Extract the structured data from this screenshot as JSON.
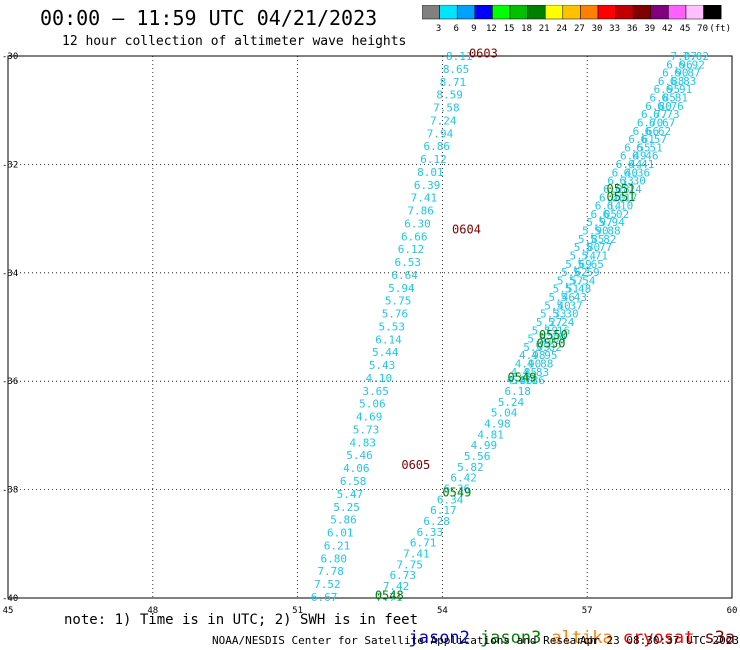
{
  "header": {
    "title": "00:00 – 11:59 UTC 04/21/2023",
    "subtitle": "12 hour collection of altimeter wave heights"
  },
  "colorbar": {
    "ticks": [
      "3",
      "6",
      "9",
      "12",
      "15",
      "18",
      "21",
      "24",
      "27",
      "30",
      "33",
      "36",
      "39",
      "42",
      "45",
      "70",
      "(ft)"
    ],
    "colors": [
      "#808080",
      "#00e5ff",
      "#00a0ff",
      "#0000ff",
      "#00ff00",
      "#00c000",
      "#008000",
      "#ffff00",
      "#ffc000",
      "#ff8000",
      "#ff0000",
      "#c00000",
      "#800000",
      "#800080",
      "#ff60ff",
      "#ffc0ff",
      "#000000"
    ]
  },
  "axes": {
    "x_ticks": [
      "45",
      "48",
      "51",
      "54",
      "57",
      "60"
    ],
    "y_ticks": [
      "-30",
      "-32",
      "-34",
      "-36",
      "-38",
      "-40"
    ],
    "lon_range": [
      45,
      60
    ],
    "lat_range": [
      -40,
      -30
    ]
  },
  "chart_data": {
    "type": "scatter",
    "tracks": [
      {
        "satellite": "altika-cyan-west",
        "color": "#1ec8e8",
        "lon_start": 54.35,
        "lat_start": -30.0,
        "lon_end": 51.55,
        "lat_end": -39.98,
        "values": [
          "8.11",
          "8.65",
          "8.71",
          "8.59",
          "7.58",
          "7.24",
          "7.94",
          "6.86",
          "6.12",
          "8.01",
          "6.39",
          "7.41",
          "7.86",
          "6.30",
          "6.66",
          "6.12",
          "6.53",
          "6.64",
          "5.94",
          "5.75",
          "5.76",
          "5.53",
          "6.14",
          "5.44",
          "5.43",
          "4.10",
          "3.65",
          "5.06",
          "4.69",
          "5.73",
          "4.83",
          "5.46",
          "4.06",
          "6.58",
          "5.47",
          "5.25",
          "5.86",
          "6.01",
          "6.21",
          "6.80",
          "7.78",
          "7.52",
          "6.67"
        ]
      },
      {
        "satellite": "altika-cyan-east",
        "color": "#1ec8e8",
        "lon_start": 55.7,
        "lat_start": -35.98,
        "lon_end": 52.9,
        "lat_end": -39.98,
        "values": [
          "5.71",
          "6.18",
          "5.24",
          "5.04",
          "4.98",
          "4.81",
          "4.99",
          "5.56",
          "5.82",
          "6.42",
          "6.36",
          "6.34",
          "6.17",
          "6.28",
          "6.33",
          "6.71",
          "7.41",
          "7.75",
          "6.73",
          "7.42",
          "7.71"
        ]
      },
      {
        "satellite": "jason3-dense-a",
        "color": "#1ec8e8",
        "lon_start": 59.0,
        "lat_start": -30.0,
        "lon_end": 55.6,
        "lat_end": -35.98,
        "values": [
          "7.07",
          "6.96",
          "6.90",
          "6.88",
          "6.95",
          "6.85",
          "6.80",
          "6.77",
          "6.70",
          "6.66",
          "6.61",
          "6.55",
          "6.49",
          "6.44",
          "6.40",
          "6.33",
          "6.28",
          "6.20",
          "6.14",
          "6.05",
          "5.97",
          "5.90",
          "5.85",
          "5.80",
          "5.74",
          "5.69",
          "5.62",
          "5.57",
          "5.51",
          "5.46",
          "5.40",
          "5.33",
          "5.27",
          "5.19",
          "5.12",
          "5.05",
          "4.98",
          "4.90",
          "4.85",
          "4.80"
        ]
      },
      {
        "satellite": "jason3-dense-b",
        "color": "#1ec8e8",
        "lon_start": 59.25,
        "lat_start": -30.0,
        "lon_end": 55.85,
        "lat_end": -35.98,
        "values": [
          "7.02",
          "6.92",
          "6.87",
          "6.83",
          "6.91",
          "6.81",
          "6.76",
          "6.73",
          "6.67",
          "6.62",
          "6.57",
          "6.51",
          "6.46",
          "6.41",
          "6.36",
          "6.30",
          "6.24",
          "6.17",
          "6.10",
          "6.02",
          "5.94",
          "5.88",
          "5.82",
          "5.77",
          "5.71",
          "5.65",
          "5.59",
          "5.54",
          "5.48",
          "5.43",
          "5.37",
          "5.30",
          "5.24",
          "5.16",
          "5.09",
          "5.02",
          "4.95",
          "4.88",
          "4.83",
          "4.86"
        ]
      }
    ],
    "time_labels": [
      {
        "text": "0603",
        "color": "#800000",
        "lon": 54.55,
        "lat": -29.95
      },
      {
        "text": "0604",
        "color": "#800000",
        "lon": 54.2,
        "lat": -33.2
      },
      {
        "text": "0605",
        "color": "#800000",
        "lon": 53.15,
        "lat": -37.55
      },
      {
        "text": "0551",
        "color": "#008000",
        "lon": 57.4,
        "lat": -32.45
      },
      {
        "text": "0551",
        "color": "#008000",
        "lon": 57.4,
        "lat": -32.6
      },
      {
        "text": "0550",
        "color": "#008000",
        "lon": 56.0,
        "lat": -35.15
      },
      {
        "text": "0550",
        "color": "#008000",
        "lon": 55.95,
        "lat": -35.3
      },
      {
        "text": "0549",
        "color": "#008000",
        "lon": 55.35,
        "lat": -35.93
      },
      {
        "text": "0549",
        "color": "#008000",
        "lon": 54.0,
        "lat": -38.05
      },
      {
        "text": "0548",
        "color": "#008000",
        "lon": 52.6,
        "lat": -39.95
      }
    ]
  },
  "footer": {
    "note": "note: 1) Time is in UTC; 2) SWH is in feet",
    "legend": [
      {
        "name": "jason2",
        "color": "#0000c8"
      },
      {
        "name": "jason3",
        "color": "#008000"
      },
      {
        "name": "altika",
        "color": "#ff8000"
      },
      {
        "name": "cryosat",
        "color": "#ff0000"
      },
      {
        "name": "s3a",
        "color": "#800000"
      }
    ],
    "credit": "NOAA/NESDIS Center for Satellite Applications and Research",
    "timestamp": "Apr 23 08:30:37 UTC 2023"
  }
}
